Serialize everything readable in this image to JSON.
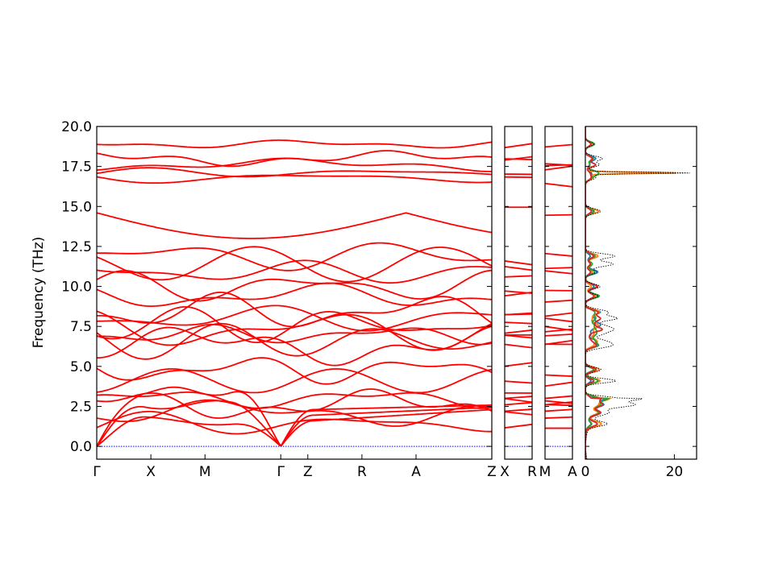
{
  "chart_data": {
    "type": "line",
    "title": "",
    "ylabel": "Frequency (THz)",
    "ylim": [
      -0.8,
      20.0
    ],
    "yticks": [
      "0.0",
      "2.5",
      "5.0",
      "7.5",
      "10.0",
      "12.5",
      "15.0",
      "17.5",
      "20.0"
    ],
    "band_color": "#ff0000",
    "zero_line_color": "#0000ff",
    "panels": [
      {
        "id": "main",
        "path": [
          "Γ",
          "X",
          "M",
          "Γ",
          "Z",
          "R",
          "A",
          "Z"
        ],
        "segments": [
          {
            "name": "Γ-X",
            "x": [
              0,
              1
            ]
          },
          {
            "name": "X-M",
            "x": [
              1,
              2
            ]
          },
          {
            "name": "M-Γ",
            "x": [
              2,
              3.4
            ]
          },
          {
            "name": "Γ-Z",
            "x": [
              3.4,
              3.9
            ]
          },
          {
            "name": "Z-R",
            "x": [
              3.9,
              4.9
            ]
          },
          {
            "name": "R-A",
            "x": [
              4.9,
              5.9
            ]
          },
          {
            "name": "A-Z",
            "x": [
              5.9,
              7.3
            ]
          }
        ],
        "tick_positions": [
          0,
          1,
          2,
          3.4,
          3.9,
          4.9,
          5.9,
          7.3
        ],
        "tick_labels": [
          "Γ",
          "X",
          "M",
          "Γ",
          "Z",
          "R",
          "A",
          "Z"
        ]
      },
      {
        "id": "x-r",
        "tick_labels": [
          "X",
          "R"
        ]
      },
      {
        "id": "m-a",
        "tick_labels": [
          "M",
          "A"
        ]
      }
    ],
    "band_frequencies_at_gamma": [
      0,
      0,
      0,
      1.4,
      2.1,
      2.6,
      3.0,
      4.1,
      4.8,
      6.3,
      6.6,
      7.0,
      7.3,
      7.6,
      8.0,
      8.4,
      9.4,
      10.0,
      10.9,
      11.4,
      11.9,
      14.7,
      16.8,
      17.1,
      17.6,
      18.0,
      18.9
    ],
    "dos": {
      "xlim": [
        0,
        25
      ],
      "xticks": [
        "0",
        "20"
      ],
      "peak_value": 24.0,
      "peak_frequency": 17.1,
      "series_colors": [
        "#1f77b4",
        "#ff7f0e",
        "#2ca02c",
        "#d62728",
        "#000000"
      ]
    }
  }
}
